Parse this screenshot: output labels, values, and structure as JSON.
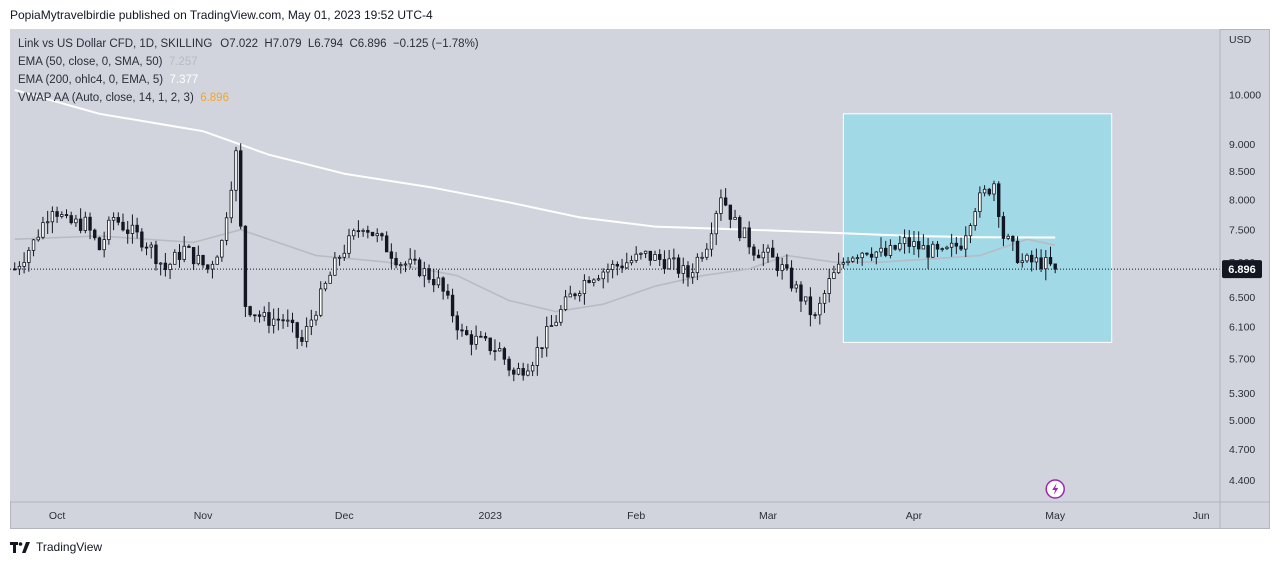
{
  "header": {
    "publisher": "PopiaMytravelbirdie published on TradingView.com, May 01, 2023 19:52 UTC-4"
  },
  "legend": {
    "symbol": "Link vs US Dollar CFD, 1D, SKILLING",
    "ohlc": {
      "open_label": "O",
      "open": "7.022",
      "high_label": "H",
      "high": "7.079",
      "low_label": "L",
      "low": "6.794",
      "close_label": "C",
      "close": "6.896",
      "change": "−0.125 (−1.78%)"
    },
    "indicators": [
      {
        "label": "EMA (50, close, 0, SMA, 50)",
        "value": "7.257",
        "color": "#b8bbc2"
      },
      {
        "label": "EMA (200, ohlc4, 0, EMA, 5)",
        "value": "7.377",
        "color": "#ffffff"
      },
      {
        "label": "VWAP AA (Auto, close, 14, 1, 2, 3)",
        "value": "6.896",
        "color": "#f5a623"
      }
    ]
  },
  "footer": {
    "brand": "TradingView"
  },
  "chart_data": {
    "type": "candlestick",
    "currency": "USD",
    "y_scale": "log",
    "ylim": [
      4.2,
      11.5
    ],
    "y_ticks": [
      "10.000",
      "9.000",
      "8.500",
      "8.000",
      "7.500",
      "7.000",
      "6.500",
      "6.100",
      "5.700",
      "5.300",
      "5.000",
      "4.700",
      "4.400"
    ],
    "x_ticks": [
      {
        "label": "Oct",
        "date": "2022-10-01"
      },
      {
        "label": "Nov",
        "date": "2022-11-01"
      },
      {
        "label": "Dec",
        "date": "2022-12-01"
      },
      {
        "label": "2023",
        "date": "2023-01-01"
      },
      {
        "label": "Feb",
        "date": "2023-02-01"
      },
      {
        "label": "Mar",
        "date": "2023-03-01"
      },
      {
        "label": "Apr",
        "date": "2023-04-01"
      },
      {
        "label": "May",
        "date": "2023-05-01"
      },
      {
        "label": "Jun",
        "date": "2023-06-01"
      }
    ],
    "x_range": [
      "2022-09-21",
      "2023-06-05"
    ],
    "last_price": "6.896",
    "last_price_value": 6.896,
    "colors": {
      "candle": "#131722",
      "ema50": "#b8bbc2",
      "ema200": "#ffffff",
      "highlight": "#a2d9e6",
      "last_price_bg": "#131722",
      "event_icon": "#9c27b0"
    },
    "highlight_box": {
      "from": "2023-03-17",
      "to": "2023-05-13",
      "y_top": 9.6,
      "y_bottom": 5.9
    },
    "close_path": [
      [
        "2022-09-22",
        6.9
      ],
      [
        "2022-09-26",
        7.3
      ],
      [
        "2022-09-30",
        7.9
      ],
      [
        "2022-10-03",
        7.6
      ],
      [
        "2022-10-07",
        7.6
      ],
      [
        "2022-10-10",
        7.2
      ],
      [
        "2022-10-13",
        7.7
      ],
      [
        "2022-10-16",
        7.5
      ],
      [
        "2022-10-20",
        7.3
      ],
      [
        "2022-10-24",
        6.9
      ],
      [
        "2022-10-28",
        7.2
      ],
      [
        "2022-11-02",
        6.9
      ],
      [
        "2022-11-05",
        7.3
      ],
      [
        "2022-11-08",
        8.8
      ],
      [
        "2022-11-09",
        7.5
      ],
      [
        "2022-11-10",
        6.4
      ],
      [
        "2022-11-14",
        6.2
      ],
      [
        "2022-11-18",
        6.2
      ],
      [
        "2022-11-22",
        5.9
      ],
      [
        "2022-11-26",
        6.5
      ],
      [
        "2022-11-30",
        7.1
      ],
      [
        "2022-12-05",
        7.6
      ],
      [
        "2022-12-09",
        7.3
      ],
      [
        "2022-12-13",
        7.0
      ],
      [
        "2022-12-17",
        6.9
      ],
      [
        "2022-12-21",
        6.7
      ],
      [
        "2022-12-26",
        6.0
      ],
      [
        "2022-12-30",
        5.9
      ],
      [
        "2023-01-03",
        5.8
      ],
      [
        "2023-01-06",
        5.5
      ],
      [
        "2023-01-10",
        5.7
      ],
      [
        "2023-01-14",
        6.1
      ],
      [
        "2023-01-18",
        6.5
      ],
      [
        "2023-01-22",
        6.8
      ],
      [
        "2023-01-26",
        6.9
      ],
      [
        "2023-01-30",
        7.0
      ],
      [
        "2023-02-03",
        7.1
      ],
      [
        "2023-02-08",
        7.0
      ],
      [
        "2023-02-12",
        6.8
      ],
      [
        "2023-02-16",
        7.3
      ],
      [
        "2023-02-19",
        8.1
      ],
      [
        "2023-02-22",
        7.6
      ],
      [
        "2023-02-26",
        7.2
      ],
      [
        "2023-03-01",
        7.1
      ],
      [
        "2023-03-04",
        6.9
      ],
      [
        "2023-03-08",
        6.5
      ],
      [
        "2023-03-11",
        6.2
      ],
      [
        "2023-03-14",
        6.7
      ],
      [
        "2023-03-18",
        7.1
      ],
      [
        "2023-03-22",
        7.2
      ],
      [
        "2023-03-26",
        7.1
      ],
      [
        "2023-03-30",
        7.3
      ],
      [
        "2023-04-03",
        7.2
      ],
      [
        "2023-04-07",
        7.1
      ],
      [
        "2023-04-11",
        7.3
      ],
      [
        "2023-04-14",
        7.9
      ],
      [
        "2023-04-18",
        8.3
      ],
      [
        "2023-04-20",
        7.4
      ],
      [
        "2023-04-24",
        7.0
      ],
      [
        "2023-04-28",
        7.0
      ],
      [
        "2023-05-01",
        6.896
      ]
    ],
    "series": [
      {
        "name": "EMA (50, close, 0, SMA, 50)",
        "points": [
          [
            "2022-09-22",
            7.35
          ],
          [
            "2022-10-10",
            7.4
          ],
          [
            "2022-10-30",
            7.3
          ],
          [
            "2022-11-09",
            7.5
          ],
          [
            "2022-11-25",
            7.1
          ],
          [
            "2022-12-10",
            7.0
          ],
          [
            "2022-12-25",
            6.8
          ],
          [
            "2023-01-05",
            6.45
          ],
          [
            "2023-01-15",
            6.3
          ],
          [
            "2023-01-25",
            6.4
          ],
          [
            "2023-02-05",
            6.65
          ],
          [
            "2023-02-15",
            6.8
          ],
          [
            "2023-02-25",
            6.9
          ],
          [
            "2023-03-05",
            7.1
          ],
          [
            "2023-03-15",
            7.0
          ],
          [
            "2023-03-25",
            7.0
          ],
          [
            "2023-04-05",
            7.05
          ],
          [
            "2023-04-15",
            7.1
          ],
          [
            "2023-04-25",
            7.35
          ],
          [
            "2023-05-01",
            7.257
          ]
        ]
      },
      {
        "name": "EMA (200, ohlc4, 0, EMA, 5)",
        "points": [
          [
            "2022-09-22",
            10.1
          ],
          [
            "2022-10-10",
            9.6
          ],
          [
            "2022-11-01",
            9.25
          ],
          [
            "2022-11-15",
            8.8
          ],
          [
            "2022-12-01",
            8.45
          ],
          [
            "2022-12-20",
            8.2
          ],
          [
            "2023-01-05",
            7.95
          ],
          [
            "2023-01-20",
            7.7
          ],
          [
            "2023-02-05",
            7.55
          ],
          [
            "2023-02-25",
            7.5
          ],
          [
            "2023-03-15",
            7.45
          ],
          [
            "2023-04-01",
            7.4
          ],
          [
            "2023-04-15",
            7.38
          ],
          [
            "2023-05-01",
            7.377
          ]
        ]
      }
    ]
  }
}
